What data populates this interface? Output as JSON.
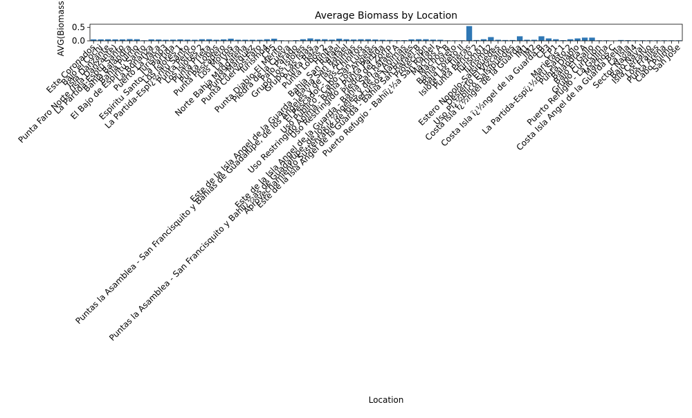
{
  "chart_data": {
    "type": "bar",
    "title": "Average Biomass by Location",
    "xlabel": "Location",
    "ylabel": "AVG(Biomass)",
    "ylim": [
      0,
      0.62
    ],
    "yticks": [
      "0.0",
      "0.5"
    ],
    "ytick_values": [
      0,
      0.5
    ],
    "bar_color": "#2f77b4",
    "categories": [
      "Este Coronados",
      "Bajo el Cochi",
      "Isla Danzante",
      "Punta Faro Norte (Isla Danzante)",
      "La Partida-Esptu Santo",
      "Bahia Balandra",
      "Bahia Pulmo",
      "El Bajo de Espiritu Santo",
      "La Bonanza",
      "Puerto La Vaca",
      "Turismo3",
      "Espiritu Santo-La Partida",
      "Los Islotes 1",
      "La Partida-Espï¿½ritu Santo",
      "Punta Perico",
      "Los Islotes 2",
      "Punta Prieta",
      "Punta Lobos",
      "Punta Pescadero",
      "Los Morros",
      "La Vista",
      "Norte Bahia Magdalena",
      "Punta Marquez",
      "Punta Cuervos-Faro",
      "Turismo4",
      "CP5",
      "Punta Diablo-El Merito",
      "Piedra de la Cueva",
      "Palo Parado",
      "Grupo Los Islotes",
      "Grupo Las Islas",
      "Punta Raza",
      "Punta Lobos 2",
      "Hinita",
      "Bahia San Rafael",
      "Este de la Isla Angel de la Guarda - Bahia San Rafael",
      "Puntas la Asamblea - San Francisquito y Bahias de Guadalupe, de los Angeles y de las Animas",
      "El Pescador - Los Chinitos",
      "Uso Publico - Cabo San Lucas",
      "Uso Restringido Anima - Bahia Los Angeles",
      "Uso Restringido - Punta Partida",
      "Piedra del Zorro",
      "Este de la Isla Angel de la Guarda - Bahia San Rafael A",
      "Puntas la Asamblea - San Francisquito y Bahiï¿½as de Guadalupe, de los ï¿½ngeles y de las Animas",
      "Aprovechamiento Sustentable de los Recursos Naturales",
      "Este de la Isla Angel de la Guarda - Bahia San Rafael B",
      "Proteccion",
      "Puerto Refugio - Bahiï¿½a San Rafael",
      "Machos A",
      "Machos B",
      "Bahia Loreto",
      "Baja Loreto II",
      "Islote Las Tijeras",
      "Punta Perico 2",
      "Turismo1",
      "Turismo2",
      "Estero Nopolo-Salsipuedes",
      "Desierto El Vizcaino",
      "Uso Pï¿½blico Salsipuedes",
      "Costa Isla ï¿½ngel de la Guarda",
      "IM1",
      "IM2",
      "Costa Isla ï¿½ngel de la Guarda B",
      "CP3",
      "CP1",
      "Marietas 1",
      "La Partida-Espï¿½ritu Santo 2",
      "Punta Diablo",
      "Balandra A",
      "Bajo El Gallo",
      "Grupo Curricion",
      "Puerto Refugio - La Gallina",
      "Machos C",
      "Costa Isla Angel de la Guarda Bella",
      "La Isla",
      "Sector Naval4",
      "Bajo Naval",
      "Isla Cerralvo",
      "Los Frailes",
      "Punta Arena",
      "Cabo Pulmo",
      "San Jose"
    ],
    "values": [
      0.055,
      0.055,
      0.058,
      0.055,
      0.055,
      0.065,
      0.06,
      0.02,
      0.055,
      0.05,
      0.04,
      0.045,
      0.055,
      0.045,
      0.04,
      0.06,
      0.06,
      0.04,
      0.055,
      0.08,
      0.04,
      0.04,
      0.04,
      0.04,
      0.06,
      0.08,
      0.02,
      0.015,
      0.025,
      0.06,
      0.09,
      0.06,
      0.06,
      0.045,
      0.08,
      0.06,
      0.05,
      0.06,
      0.06,
      0.05,
      0.04,
      0.035,
      0.025,
      0.025,
      0.055,
      0.06,
      0.06,
      0.045,
      0.04,
      0.02,
      0.02,
      0.02,
      0.55,
      0.03,
      0.06,
      0.14,
      0.04,
      0.03,
      0.03,
      0.17,
      0.04,
      0.04,
      0.17,
      0.09,
      0.06,
      0.025,
      0.06,
      0.09,
      0.12,
      0.12,
      0.02,
      0.02,
      0.01,
      0.03,
      0.025,
      0.02,
      0.02,
      0.02,
      0.02,
      0.02,
      0.02,
      0.02
    ]
  }
}
